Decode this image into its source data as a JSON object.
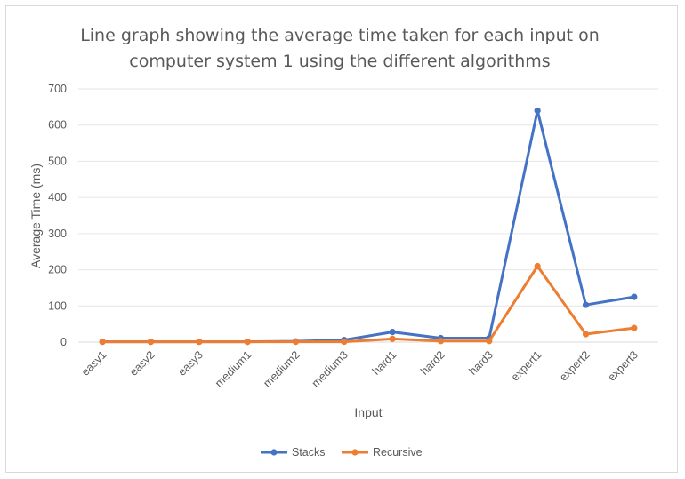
{
  "chart_data": {
    "type": "line",
    "title_lines": [
      "Line graph showing the average time taken for each input on",
      "computer system 1 using the different algorithms"
    ],
    "xlabel": "Input",
    "ylabel": "Average Time (ms)",
    "categories": [
      "easy1",
      "easy2",
      "easy3",
      "medium1",
      "medium2",
      "medium3",
      "hard1",
      "hard2",
      "hard3",
      "expert1",
      "expert2",
      "expert3"
    ],
    "ylim": [
      0,
      700
    ],
    "yticks": [
      0,
      100,
      200,
      300,
      400,
      500,
      600,
      700
    ],
    "grid": true,
    "legend_position": "bottom",
    "series": [
      {
        "name": "Stacks",
        "color": "#4472c4",
        "values": [
          1,
          1,
          1,
          1,
          2,
          6,
          28,
          11,
          11,
          640,
          103,
          125
        ]
      },
      {
        "name": "Recursive",
        "color": "#ed7d31",
        "values": [
          1,
          1,
          1,
          1,
          1,
          1,
          9,
          3,
          3,
          210,
          22,
          39
        ]
      }
    ]
  }
}
